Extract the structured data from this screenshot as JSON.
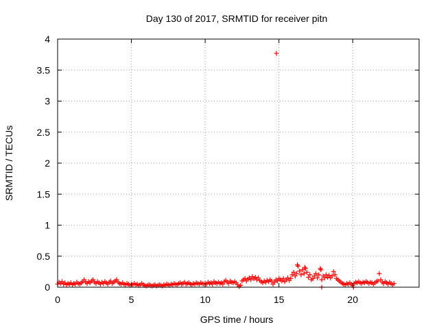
{
  "chart_data": {
    "type": "scatter",
    "title": "Day 130 of 2017, SRMTID for receiver pitn",
    "xlabel": "GPS time / hours",
    "ylabel": "SRMTID / TECUs",
    "xlim": [
      0,
      24.5
    ],
    "ylim": [
      0,
      4
    ],
    "xticks": [
      0,
      5,
      10,
      15,
      20
    ],
    "yticks": [
      0,
      0.5,
      1,
      1.5,
      2,
      2.5,
      3,
      3.5,
      4
    ],
    "xtick_labels": [
      "0",
      "5",
      "10",
      "15",
      "20"
    ],
    "ytick_labels": [
      "0",
      "0.5",
      "1",
      "1.5",
      "2",
      "2.5",
      "3",
      "3.5",
      "4"
    ],
    "grid": true,
    "marker": "+",
    "series": [
      {
        "name": "SRMTID",
        "color": "#ff0000",
        "points": [
          [
            0.0,
            0.05
          ],
          [
            0.1,
            0.08
          ],
          [
            0.2,
            0.06
          ],
          [
            0.3,
            0.09
          ],
          [
            0.4,
            0.05
          ],
          [
            0.5,
            0.07
          ],
          [
            0.6,
            0.04
          ],
          [
            0.7,
            0.06
          ],
          [
            0.8,
            0.05
          ],
          [
            0.9,
            0.07
          ],
          [
            1.0,
            0.04
          ],
          [
            1.1,
            0.06
          ],
          [
            1.2,
            0.05
          ],
          [
            1.3,
            0.08
          ],
          [
            1.4,
            0.06
          ],
          [
            1.5,
            0.05
          ],
          [
            1.6,
            0.07
          ],
          [
            1.7,
            0.09
          ],
          [
            1.8,
            0.12
          ],
          [
            1.9,
            0.08
          ],
          [
            2.0,
            0.06
          ],
          [
            2.1,
            0.09
          ],
          [
            2.2,
            0.07
          ],
          [
            2.3,
            0.1
          ],
          [
            2.4,
            0.12
          ],
          [
            2.5,
            0.08
          ],
          [
            2.6,
            0.06
          ],
          [
            2.7,
            0.09
          ],
          [
            2.8,
            0.07
          ],
          [
            2.9,
            0.05
          ],
          [
            3.0,
            0.08
          ],
          [
            3.1,
            0.06
          ],
          [
            3.2,
            0.09
          ],
          [
            3.3,
            0.07
          ],
          [
            3.4,
            0.05
          ],
          [
            3.5,
            0.08
          ],
          [
            3.6,
            0.1
          ],
          [
            3.7,
            0.06
          ],
          [
            3.8,
            0.08
          ],
          [
            3.9,
            0.1
          ],
          [
            4.0,
            0.12
          ],
          [
            4.1,
            0.08
          ],
          [
            4.2,
            0.06
          ],
          [
            4.3,
            0.05
          ],
          [
            4.4,
            0.07
          ],
          [
            4.5,
            0.05
          ],
          [
            4.6,
            0.04
          ],
          [
            4.7,
            0.06
          ],
          [
            4.8,
            0.05
          ],
          [
            4.9,
            0.03
          ],
          [
            5.0,
            0.05
          ],
          [
            5.1,
            0.04
          ],
          [
            5.2,
            0.06
          ],
          [
            5.3,
            0.04
          ],
          [
            5.4,
            0.05
          ],
          [
            5.5,
            0.03
          ],
          [
            5.6,
            0.04
          ],
          [
            5.7,
            0.06
          ],
          [
            5.8,
            0.04
          ],
          [
            5.9,
            0.03
          ],
          [
            6.0,
            0.02
          ],
          [
            6.1,
            0.03
          ],
          [
            6.2,
            0.04
          ],
          [
            6.3,
            0.03
          ],
          [
            6.4,
            0.02
          ],
          [
            6.5,
            0.03
          ],
          [
            6.6,
            0.04
          ],
          [
            6.7,
            0.02
          ],
          [
            6.8,
            0.03
          ],
          [
            6.9,
            0.04
          ],
          [
            7.0,
            0.03
          ],
          [
            7.1,
            0.02
          ],
          [
            7.2,
            0.04
          ],
          [
            7.3,
            0.03
          ],
          [
            7.4,
            0.05
          ],
          [
            7.5,
            0.04
          ],
          [
            7.6,
            0.03
          ],
          [
            7.7,
            0.05
          ],
          [
            7.8,
            0.04
          ],
          [
            7.9,
            0.06
          ],
          [
            8.0,
            0.05
          ],
          [
            8.1,
            0.04
          ],
          [
            8.2,
            0.06
          ],
          [
            8.3,
            0.07
          ],
          [
            8.4,
            0.05
          ],
          [
            8.5,
            0.06
          ],
          [
            8.6,
            0.08
          ],
          [
            8.7,
            0.05
          ],
          [
            8.8,
            0.06
          ],
          [
            8.9,
            0.07
          ],
          [
            9.0,
            0.05
          ],
          [
            9.1,
            0.04
          ],
          [
            9.2,
            0.06
          ],
          [
            9.3,
            0.05
          ],
          [
            9.4,
            0.07
          ],
          [
            9.5,
            0.06
          ],
          [
            9.6,
            0.05
          ],
          [
            9.7,
            0.07
          ],
          [
            9.8,
            0.06
          ],
          [
            9.9,
            0.05
          ],
          [
            10.0,
            0.06
          ],
          [
            10.1,
            0.05
          ],
          [
            10.2,
            0.08
          ],
          [
            10.3,
            0.06
          ],
          [
            10.4,
            0.07
          ],
          [
            10.5,
            0.05
          ],
          [
            10.6,
            0.09
          ],
          [
            10.7,
            0.07
          ],
          [
            10.8,
            0.06
          ],
          [
            10.9,
            0.08
          ],
          [
            11.0,
            0.06
          ],
          [
            11.1,
            0.07
          ],
          [
            11.2,
            0.05
          ],
          [
            11.3,
            0.09
          ],
          [
            11.4,
            0.11
          ],
          [
            11.5,
            0.08
          ],
          [
            11.6,
            0.06
          ],
          [
            11.7,
            0.1
          ],
          [
            11.8,
            0.08
          ],
          [
            11.9,
            0.07
          ],
          [
            12.0,
            0.09
          ],
          [
            12.1,
            0.07
          ],
          [
            12.2,
            0.04
          ],
          [
            12.3,
            0.01
          ],
          [
            12.4,
            0.03
          ],
          [
            12.5,
            0.1
          ],
          [
            12.6,
            0.12
          ],
          [
            12.7,
            0.14
          ],
          [
            12.8,
            0.1
          ],
          [
            12.9,
            0.13
          ],
          [
            13.0,
            0.15
          ],
          [
            13.1,
            0.12
          ],
          [
            13.2,
            0.17
          ],
          [
            13.3,
            0.14
          ],
          [
            13.4,
            0.16
          ],
          [
            13.5,
            0.12
          ],
          [
            13.6,
            0.15
          ],
          [
            13.7,
            0.11
          ],
          [
            13.8,
            0.09
          ],
          [
            13.9,
            0.07
          ],
          [
            14.0,
            0.1
          ],
          [
            14.1,
            0.08
          ],
          [
            14.2,
            0.11
          ],
          [
            14.3,
            0.09
          ],
          [
            14.4,
            0.12
          ],
          [
            14.5,
            0.1
          ],
          [
            14.6,
            0.05
          ],
          [
            14.7,
            0.08
          ],
          [
            14.8,
            0.12
          ],
          [
            14.9,
            0.1
          ],
          [
            15.0,
            0.14
          ],
          [
            15.1,
            0.12
          ],
          [
            15.2,
            0.1
          ],
          [
            15.3,
            0.14
          ],
          [
            15.4,
            0.09
          ],
          [
            15.5,
            0.12
          ],
          [
            15.6,
            0.15
          ],
          [
            15.7,
            0.11
          ],
          [
            15.8,
            0.14
          ],
          [
            15.9,
            0.2
          ],
          [
            16.0,
            0.24
          ],
          [
            16.1,
            0.18
          ],
          [
            16.2,
            0.22
          ],
          [
            16.3,
            0.34
          ],
          [
            16.4,
            0.26
          ],
          [
            16.5,
            0.2
          ],
          [
            16.6,
            0.28
          ],
          [
            16.7,
            0.22
          ],
          [
            16.8,
            0.3
          ],
          [
            16.9,
            0.24
          ],
          [
            17.0,
            0.16
          ],
          [
            17.1,
            0.2
          ],
          [
            17.2,
            0.12
          ],
          [
            17.3,
            0.14
          ],
          [
            17.4,
            0.18
          ],
          [
            17.5,
            0.22
          ],
          [
            17.6,
            0.15
          ],
          [
            17.7,
            0.2
          ],
          [
            17.8,
            0.3
          ],
          [
            17.9,
            0.12
          ],
          [
            18.0,
            0.18
          ],
          [
            18.1,
            0.15
          ],
          [
            18.2,
            0.2
          ],
          [
            18.3,
            0.16
          ],
          [
            18.4,
            0.19
          ],
          [
            18.5,
            0.15
          ],
          [
            18.6,
            0.18
          ],
          [
            18.7,
            0.25
          ],
          [
            18.8,
            0.2
          ],
          [
            18.9,
            0.14
          ],
          [
            19.0,
            0.12
          ],
          [
            19.1,
            0.1
          ],
          [
            19.2,
            0.08
          ],
          [
            19.3,
            0.06
          ],
          [
            19.4,
            0.05
          ],
          [
            19.5,
            0.04
          ],
          [
            19.6,
            0.06
          ],
          [
            19.7,
            0.05
          ],
          [
            19.8,
            0.07
          ],
          [
            19.9,
            0.05
          ],
          [
            20.0,
            0.03
          ],
          [
            20.1,
            0.06
          ],
          [
            20.2,
            0.08
          ],
          [
            20.3,
            0.07
          ],
          [
            20.4,
            0.09
          ],
          [
            20.5,
            0.07
          ],
          [
            20.6,
            0.06
          ],
          [
            20.7,
            0.08
          ],
          [
            20.8,
            0.07
          ],
          [
            20.9,
            0.09
          ],
          [
            21.0,
            0.08
          ],
          [
            21.1,
            0.06
          ],
          [
            21.2,
            0.08
          ],
          [
            21.3,
            0.07
          ],
          [
            21.4,
            0.05
          ],
          [
            21.5,
            0.07
          ],
          [
            21.6,
            0.09
          ],
          [
            21.7,
            0.1
          ],
          [
            21.8,
            0.22
          ],
          [
            21.9,
            0.12
          ],
          [
            22.0,
            0.08
          ],
          [
            22.1,
            0.06
          ],
          [
            22.2,
            0.09
          ],
          [
            22.3,
            0.07
          ],
          [
            22.4,
            0.05
          ],
          [
            22.5,
            0.08
          ],
          [
            22.6,
            0.06
          ],
          [
            22.7,
            0.04
          ],
          [
            22.8,
            0.06
          ],
          [
            14.83,
            3.77
          ],
          [
            16.25,
            0.36
          ],
          [
            16.75,
            0.32
          ],
          [
            17.85,
            0.28
          ],
          [
            17.9,
            0.0
          ],
          [
            20.05,
            0.0
          ]
        ]
      }
    ]
  }
}
